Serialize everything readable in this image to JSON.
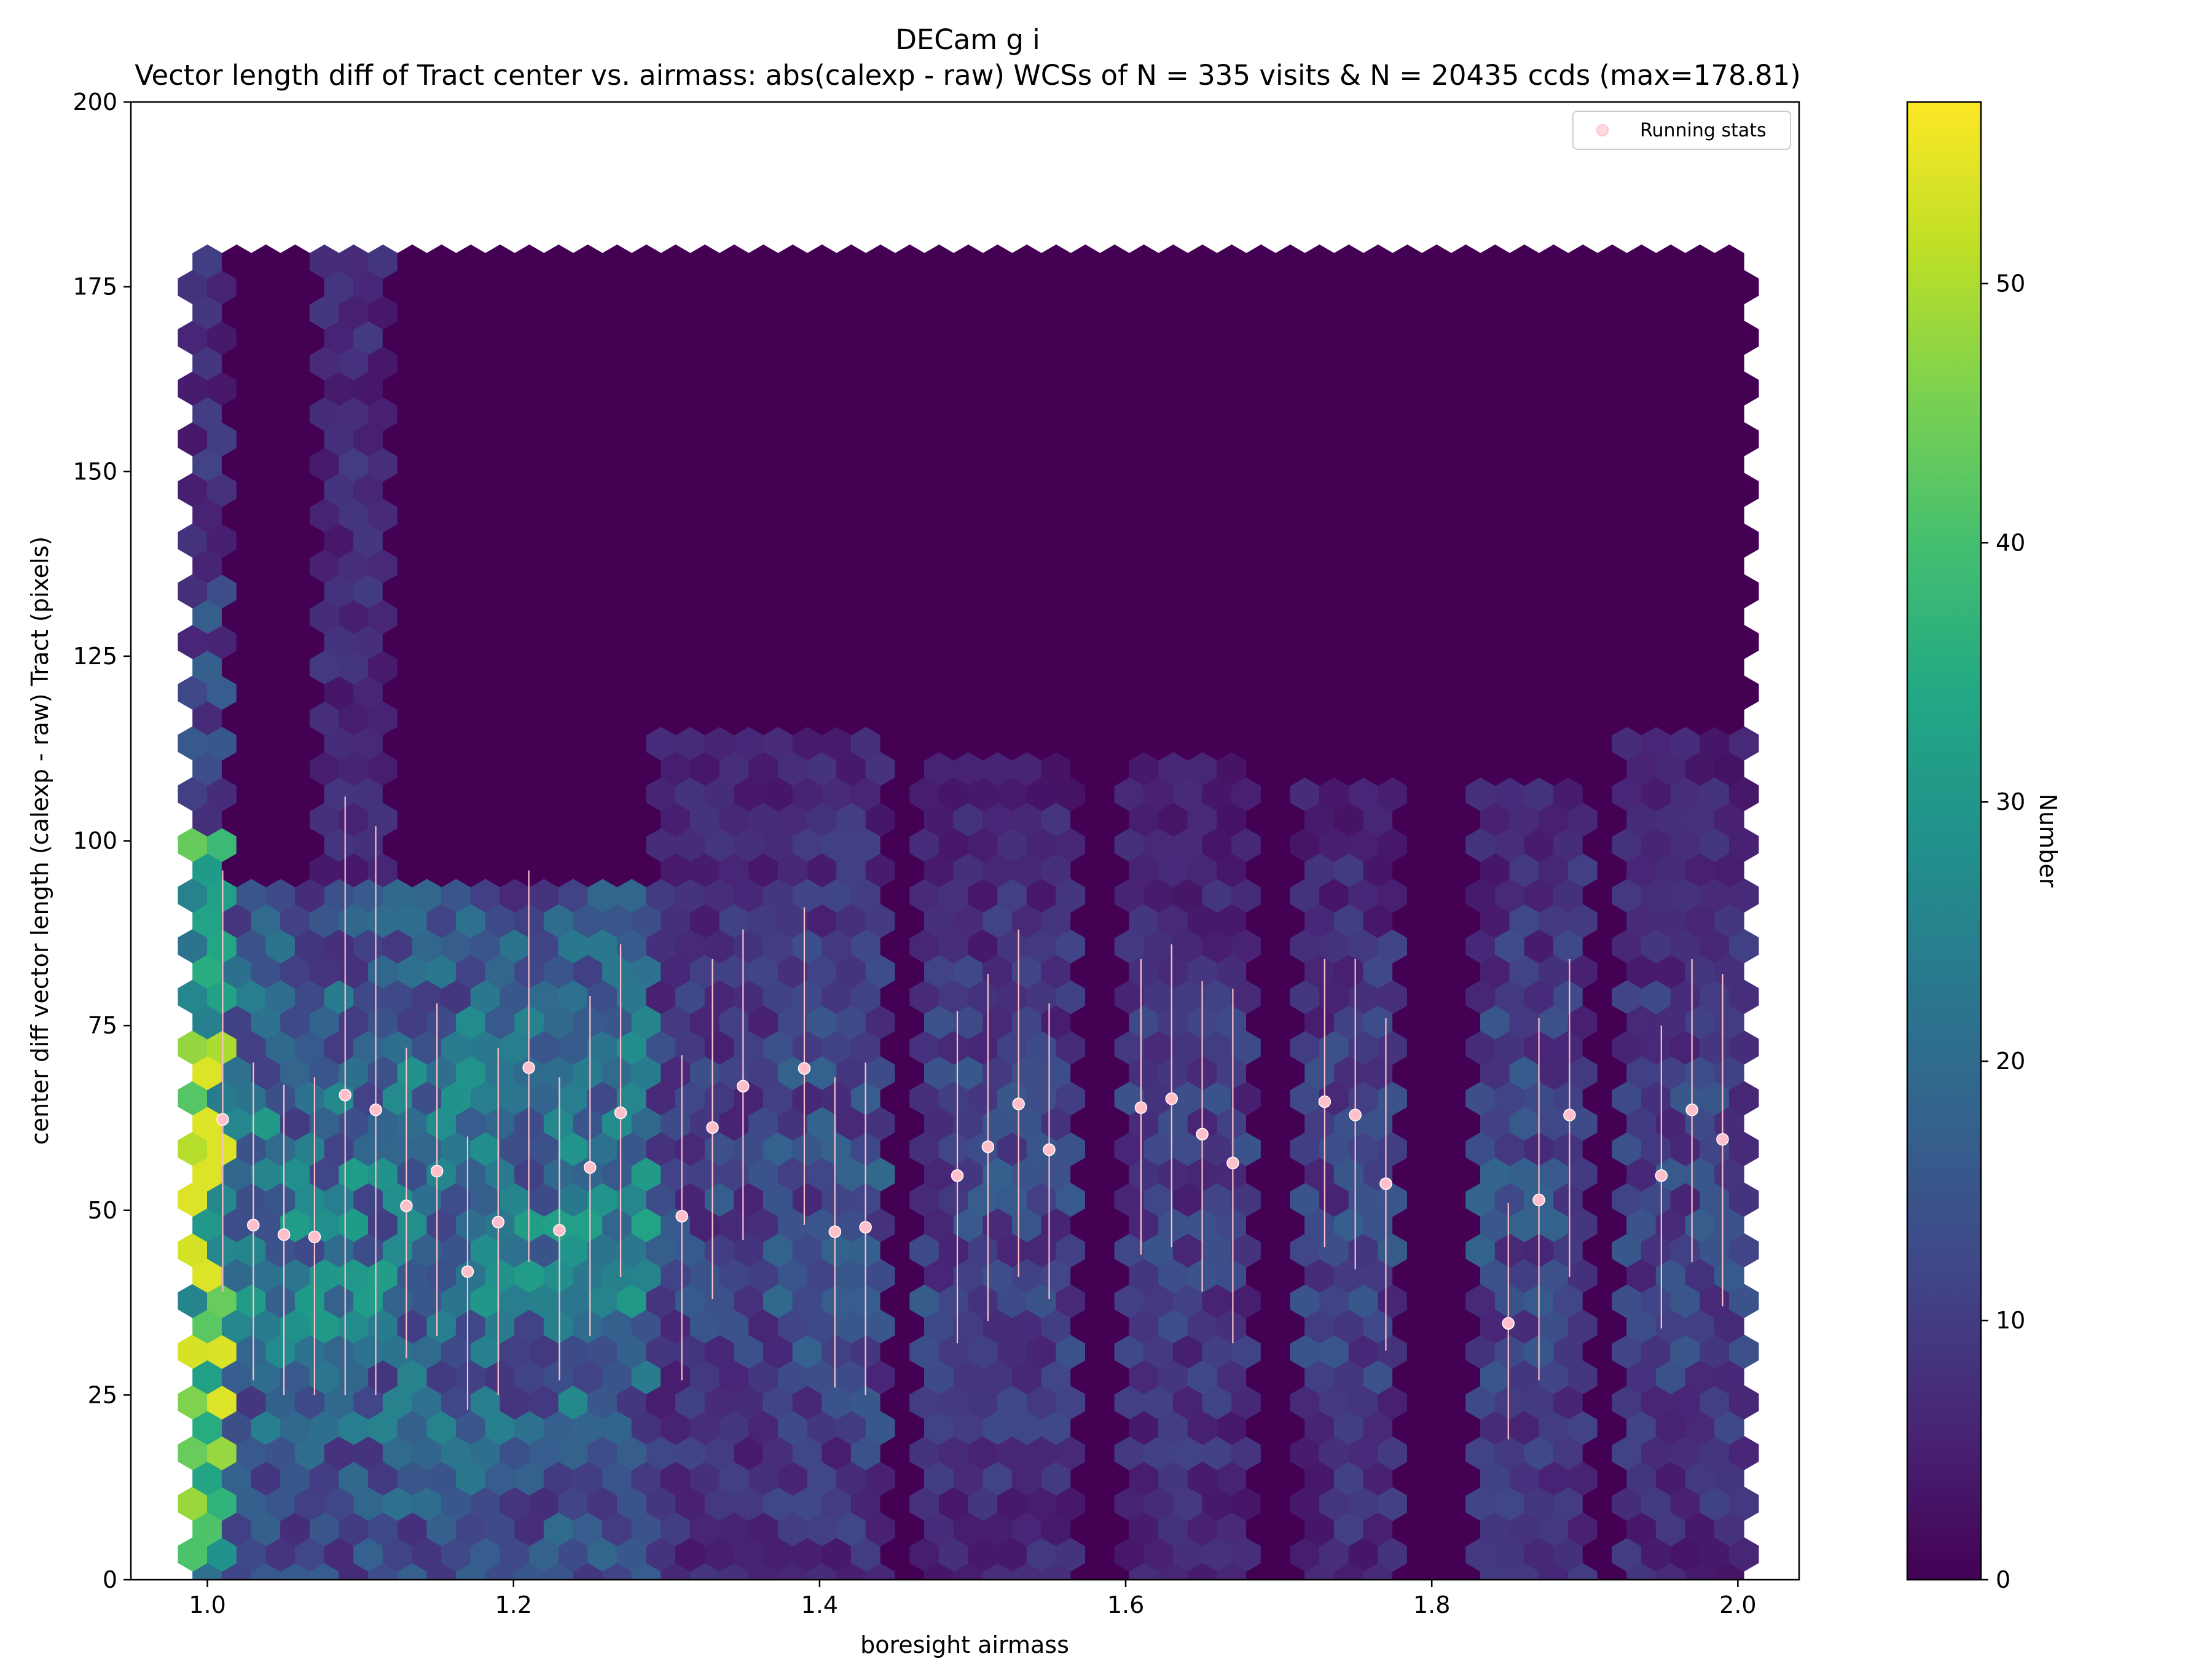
{
  "chart_data": {
    "type": "hexbin",
    "title": "DECam g i",
    "subtitle": "Vector length diff of Tract center vs. airmass: abs(calexp - raw) WCSs of N = 335 visits & N = 20435 ccds (max=178.81)",
    "xlabel": "boresight airmass",
    "ylabel": "center diff vector length (calexp - raw) Tract (pixels)",
    "xlim": [
      0.95,
      2.04
    ],
    "ylim": [
      0,
      200
    ],
    "xticks": [
      "1.0",
      "1.2",
      "1.4",
      "1.6",
      "1.8",
      "2.0"
    ],
    "xtick_values": [
      1.0,
      1.2,
      1.4,
      1.6,
      1.8,
      2.0
    ],
    "yticks": [
      "0",
      "25",
      "50",
      "75",
      "100",
      "125",
      "150",
      "175",
      "200"
    ],
    "ytick_values": [
      0,
      25,
      50,
      75,
      100,
      125,
      150,
      175,
      200
    ],
    "hexbin_extent": {
      "x": [
        1.0,
        2.0
      ],
      "y": [
        0,
        180
      ]
    },
    "colormap": "viridis",
    "colorbar": {
      "label": "Number",
      "range": [
        0,
        57
      ],
      "ticks": [
        "0",
        "10",
        "20",
        "30",
        "40",
        "50"
      ],
      "tick_values": [
        0,
        10,
        20,
        30,
        40,
        50
      ]
    },
    "legend": {
      "label": "Running stats",
      "placement": "top-right",
      "marker_color": "#ffc0cb"
    },
    "airmass_groups": [
      {
        "x": [
          1.0,
          1.29
        ],
        "ymax": 95,
        "density": 0.42
      },
      {
        "x": [
          1.3,
          1.37
        ],
        "ymax": 115,
        "density": 0.22
      },
      {
        "x": [
          1.37,
          1.44
        ],
        "ymax": 115,
        "density": 0.26
      },
      {
        "x": [
          1.47,
          1.56
        ],
        "ymax": 110,
        "density": 0.22
      },
      {
        "x": [
          1.6,
          1.68
        ],
        "ymax": 110,
        "density": 0.2
      },
      {
        "x": [
          1.72,
          1.77
        ],
        "ymax": 108,
        "density": 0.22
      },
      {
        "x": [
          1.83,
          1.9
        ],
        "ymax": 108,
        "density": 0.24
      },
      {
        "x": [
          1.93,
          2.0
        ],
        "ymax": 115,
        "density": 0.22
      }
    ],
    "running_stats": [
      {
        "x": 1.01,
        "y": 62.3,
        "low": 39.0,
        "high": 96.0
      },
      {
        "x": 1.03,
        "y": 48.0,
        "low": 27.0,
        "high": 70.0
      },
      {
        "x": 1.05,
        "y": 46.7,
        "low": 25.0,
        "high": 67.0
      },
      {
        "x": 1.07,
        "y": 46.4,
        "low": 25.0,
        "high": 68.0
      },
      {
        "x": 1.09,
        "y": 65.6,
        "low": 25.0,
        "high": 106.0
      },
      {
        "x": 1.11,
        "y": 63.6,
        "low": 25.0,
        "high": 102.0
      },
      {
        "x": 1.13,
        "y": 50.6,
        "low": 30.0,
        "high": 72.0
      },
      {
        "x": 1.15,
        "y": 55.3,
        "low": 33.0,
        "high": 78.0
      },
      {
        "x": 1.17,
        "y": 41.7,
        "low": 23.0,
        "high": 60.0
      },
      {
        "x": 1.19,
        "y": 48.4,
        "low": 25.0,
        "high": 72.0
      },
      {
        "x": 1.21,
        "y": 69.3,
        "low": 43.0,
        "high": 96.0
      },
      {
        "x": 1.23,
        "y": 47.3,
        "low": 27.0,
        "high": 68.0
      },
      {
        "x": 1.25,
        "y": 55.8,
        "low": 33.0,
        "high": 79.0
      },
      {
        "x": 1.27,
        "y": 63.2,
        "low": 41.0,
        "high": 86.0
      },
      {
        "x": 1.31,
        "y": 49.2,
        "low": 27.0,
        "high": 71.0
      },
      {
        "x": 1.33,
        "y": 61.2,
        "low": 38.0,
        "high": 84.0
      },
      {
        "x": 1.35,
        "y": 66.8,
        "low": 46.0,
        "high": 88.0
      },
      {
        "x": 1.39,
        "y": 69.2,
        "low": 48.0,
        "high": 91.0
      },
      {
        "x": 1.41,
        "y": 47.1,
        "low": 26.0,
        "high": 68.0
      },
      {
        "x": 1.43,
        "y": 47.7,
        "low": 25.0,
        "high": 70.0
      },
      {
        "x": 1.49,
        "y": 54.7,
        "low": 32.0,
        "high": 77.0
      },
      {
        "x": 1.51,
        "y": 58.6,
        "low": 35.0,
        "high": 82.0
      },
      {
        "x": 1.53,
        "y": 64.4,
        "low": 41.0,
        "high": 88.0
      },
      {
        "x": 1.55,
        "y": 58.2,
        "low": 38.0,
        "high": 78.0
      },
      {
        "x": 1.61,
        "y": 63.9,
        "low": 44.0,
        "high": 84.0
      },
      {
        "x": 1.63,
        "y": 65.1,
        "low": 45.0,
        "high": 86.0
      },
      {
        "x": 1.65,
        "y": 60.3,
        "low": 39.0,
        "high": 81.0
      },
      {
        "x": 1.67,
        "y": 56.4,
        "low": 32.0,
        "high": 80.0
      },
      {
        "x": 1.73,
        "y": 64.7,
        "low": 45.0,
        "high": 84.0
      },
      {
        "x": 1.75,
        "y": 62.9,
        "low": 42.0,
        "high": 84.0
      },
      {
        "x": 1.77,
        "y": 53.6,
        "low": 31.0,
        "high": 76.0
      },
      {
        "x": 1.85,
        "y": 34.7,
        "low": 19.0,
        "high": 51.0
      },
      {
        "x": 1.87,
        "y": 51.4,
        "low": 27.0,
        "high": 76.0
      },
      {
        "x": 1.89,
        "y": 62.9,
        "low": 41.0,
        "high": 84.0
      },
      {
        "x": 1.95,
        "y": 54.7,
        "low": 34.0,
        "high": 75.0
      },
      {
        "x": 1.97,
        "y": 63.6,
        "low": 43.0,
        "high": 84.0
      },
      {
        "x": 1.99,
        "y": 59.6,
        "low": 37.0,
        "high": 82.0
      }
    ]
  }
}
